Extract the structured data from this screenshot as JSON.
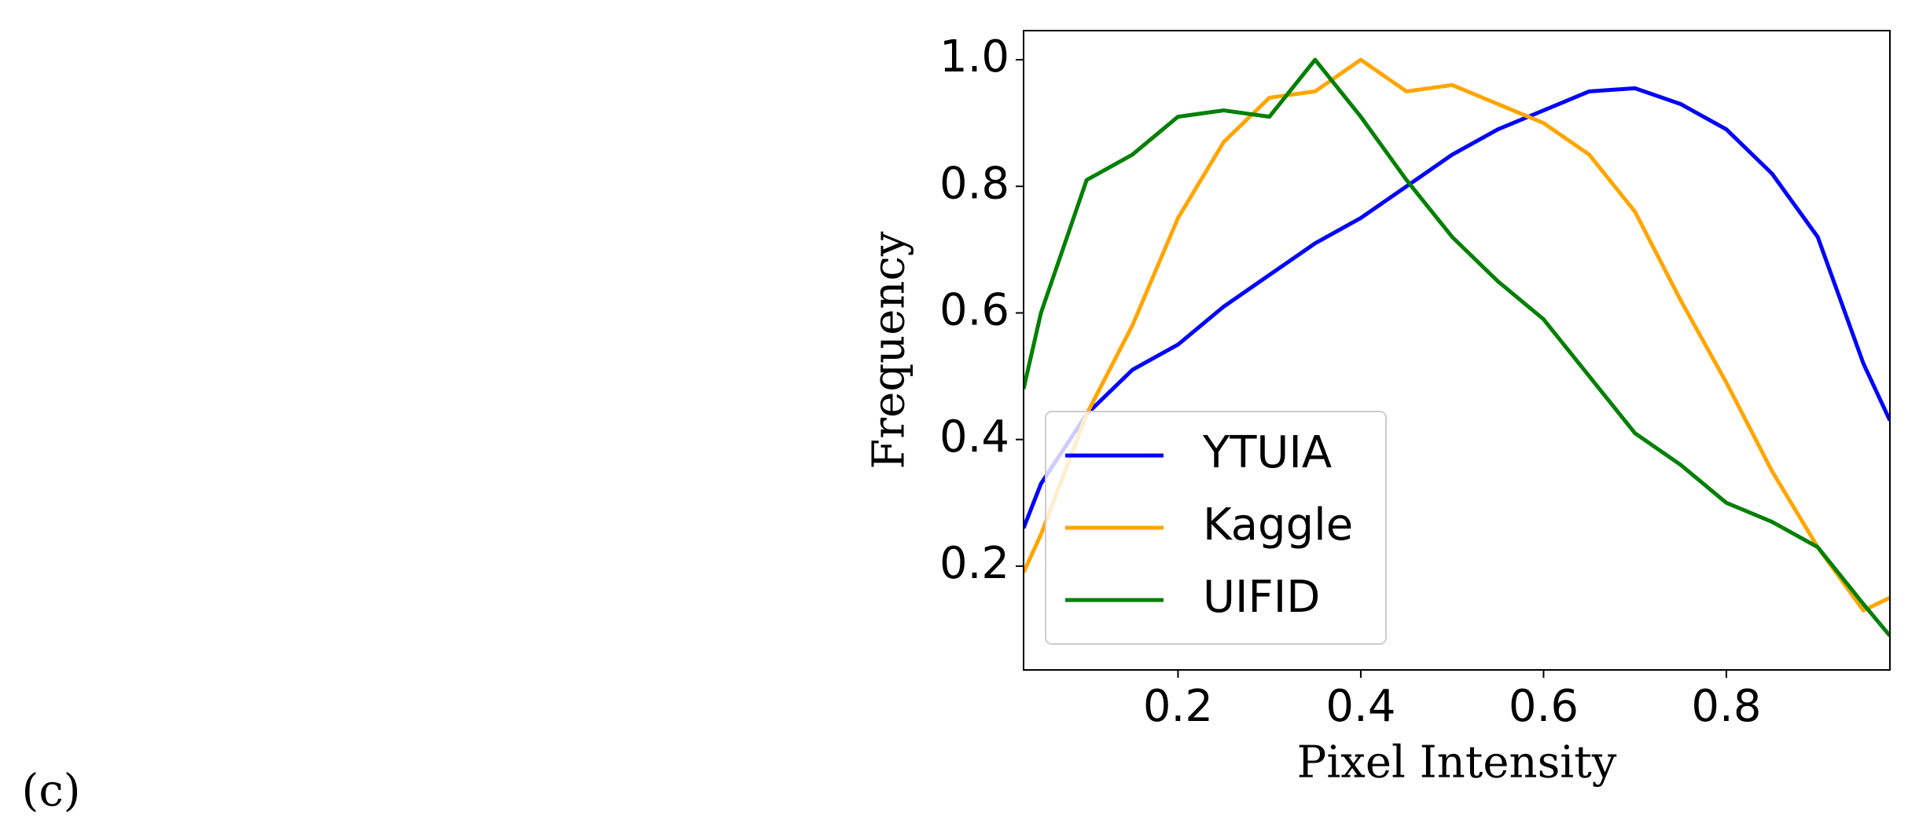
{
  "panel_label": "(c)",
  "chart_data": {
    "type": "line",
    "xlabel": "Pixel Intensity",
    "ylabel": "Frequency",
    "x": [
      0.031,
      0.05,
      0.1,
      0.15,
      0.2,
      0.25,
      0.3,
      0.35,
      0.4,
      0.45,
      0.5,
      0.55,
      0.6,
      0.65,
      0.7,
      0.75,
      0.8,
      0.85,
      0.9,
      0.95,
      0.979
    ],
    "series": [
      {
        "name": "YTUIA",
        "color": "#0000ff",
        "values": [
          0.26,
          0.33,
          0.44,
          0.51,
          0.55,
          0.61,
          0.66,
          0.71,
          0.75,
          0.8,
          0.85,
          0.89,
          0.92,
          0.95,
          0.955,
          0.93,
          0.89,
          0.82,
          0.72,
          0.52,
          0.43
        ]
      },
      {
        "name": "Kaggle",
        "color": "#ffa500",
        "values": [
          0.19,
          0.25,
          0.44,
          0.58,
          0.75,
          0.87,
          0.94,
          0.95,
          1.0,
          0.95,
          0.96,
          0.93,
          0.9,
          0.85,
          0.76,
          0.62,
          0.49,
          0.35,
          0.23,
          0.13,
          0.15
        ]
      },
      {
        "name": "UIFID",
        "color": "#008000",
        "values": [
          0.48,
          0.6,
          0.81,
          0.85,
          0.91,
          0.92,
          0.91,
          1.0,
          0.91,
          0.81,
          0.72,
          0.65,
          0.59,
          0.5,
          0.41,
          0.36,
          0.3,
          0.27,
          0.23,
          0.14,
          0.09
        ]
      }
    ],
    "xlim": [
      0.031,
      0.979
    ],
    "ylim": [
      0.036,
      1.046
    ],
    "xticks": [
      0.2,
      0.4,
      0.6,
      0.8
    ],
    "yticks": [
      0.2,
      0.4,
      0.6,
      0.8,
      {
        "value": 1,
        "label": "1.0"
      }
    ],
    "legend": "lower left"
  }
}
